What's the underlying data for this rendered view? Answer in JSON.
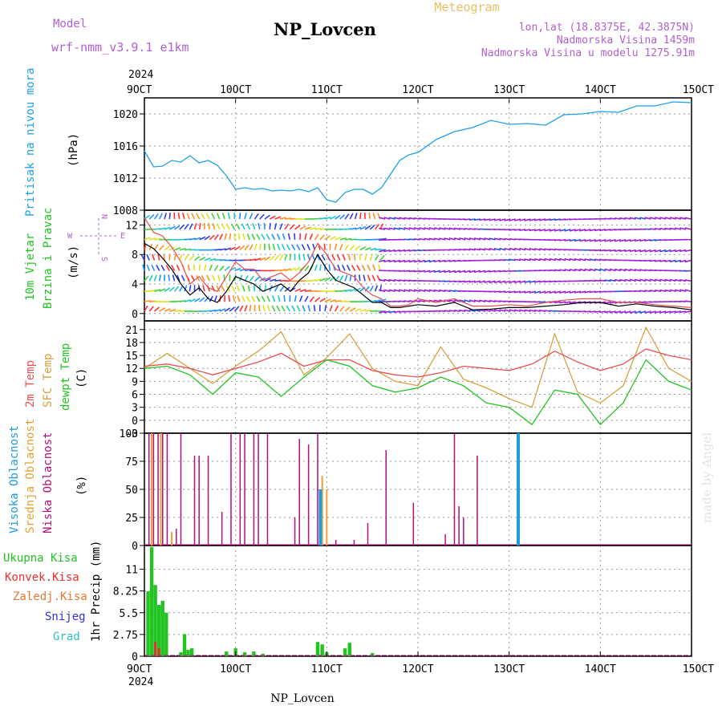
{
  "header": {
    "model_label": "Model",
    "model_name": "wrf-nmm_v3.9.1  e1km",
    "station": "NP_Lovcen",
    "product": "Meteogram",
    "lonlat": "lon,lat (18.8375E, 42.3875N)",
    "elev": "Nadmorska Visina 1459m",
    "elev_model": "Nadmorska Visina u modelu 1275.91m",
    "footer_station": "NP_Lovcen",
    "credit": "made by Angel"
  },
  "colors": {
    "pressure": "#1fa0e8",
    "wind_speed": "#000000",
    "gust": "#e85050",
    "temp2m": "#e85050",
    "sfc": "#d8a040",
    "dew": "#22c422",
    "high_cloud": "#1f9ce0",
    "mid_cloud": "#e8a030",
    "low_cloud": "#b0107a",
    "precip": "#22c422",
    "konv": "#e83030"
  },
  "chart_data": [
    {
      "type": "line",
      "panel": "pressure",
      "ylabel": "(hPa)",
      "side_label": "Pritisak na nivou mora",
      "ylim": [
        1008,
        1022
      ],
      "yticks": [
        1008,
        1012,
        1016,
        1020
      ],
      "x_ticks": [
        "9OCT",
        "10OCT",
        "11OCT",
        "12OCT",
        "13OCT",
        "14OCT",
        "15OCT"
      ],
      "x_year": "2024",
      "x": [
        0,
        0.1,
        0.2,
        0.3,
        0.4,
        0.5,
        0.6,
        0.7,
        0.8,
        0.9,
        1.0,
        1.1,
        1.2,
        1.3,
        1.4,
        1.5,
        1.6,
        1.7,
        1.8,
        1.9,
        2.0,
        2.1,
        2.2,
        2.3,
        2.4,
        2.5,
        2.6,
        2.7,
        2.8,
        2.9,
        3.0,
        3.2,
        3.4,
        3.6,
        3.8,
        4.0,
        4.2,
        4.4,
        4.6,
        4.8,
        5.0,
        5.2,
        5.4,
        5.6,
        5.8,
        6.0
      ],
      "series": [
        {
          "values": [
            1015.4,
            1013.4,
            1013.5,
            1014.2,
            1014.0,
            1014.8,
            1013.9,
            1014.2,
            1013.6,
            1012.3,
            1010.6,
            1010.8,
            1010.6,
            1010.7,
            1010.4,
            1010.5,
            1010.4,
            1010.6,
            1010.3,
            1010.8,
            1009.3,
            1009.0,
            1010.2,
            1010.6,
            1010.6,
            1010.0,
            1010.8,
            1012.5,
            1014.2,
            1014.9,
            1015.2,
            1016.8,
            1017.8,
            1018.3,
            1019.2,
            1018.7,
            1018.8,
            1018.6,
            1019.9,
            1020.0,
            1020.3,
            1020.2,
            1021.0,
            1021.0,
            1021.5,
            1021.4
          ]
        }
      ]
    },
    {
      "type": "line",
      "panel": "wind",
      "ylabel": "(m/s)",
      "side_label": "10m Vjetar",
      "side_label2": "Brzina i Pravac",
      "compass": {
        "n": "N",
        "s": "S",
        "w": "W",
        "e": "E"
      },
      "ylim": [
        -1,
        14
      ],
      "yticks": [
        0,
        4,
        8,
        12
      ],
      "x": [
        0,
        0.1,
        0.2,
        0.3,
        0.4,
        0.5,
        0.6,
        0.7,
        0.8,
        0.9,
        1.0,
        1.1,
        1.2,
        1.3,
        1.4,
        1.5,
        1.6,
        1.7,
        1.8,
        1.9,
        2.0,
        2.1,
        2.2,
        2.3,
        2.4,
        2.5,
        2.6,
        2.7,
        2.8,
        2.9,
        3.0,
        3.2,
        3.4,
        3.6,
        3.8,
        4.0,
        4.2,
        4.4,
        4.6,
        4.8,
        5.0,
        5.2,
        5.4,
        5.6,
        5.8,
        6.0
      ],
      "series": [
        {
          "name": "speed",
          "values": [
            9.5,
            8.8,
            7.5,
            6.0,
            4.0,
            2.5,
            3.5,
            2.0,
            1.5,
            3.0,
            5.0,
            4.5,
            4.0,
            3.0,
            3.5,
            4.0,
            3.0,
            4.5,
            5.5,
            8.0,
            6.0,
            4.5,
            4.0,
            3.5,
            2.5,
            1.5,
            1.5,
            0.8,
            0.8,
            1.0,
            1.2,
            1.0,
            1.5,
            0.5,
            0.6,
            0.8,
            0.8,
            1.0,
            1.2,
            1.5,
            1.5,
            1.0,
            1.3,
            1.0,
            0.8,
            0.5
          ]
        },
        {
          "name": "gust",
          "values": [
            13.0,
            11.0,
            10.5,
            9.0,
            7.0,
            4.0,
            5.0,
            3.5,
            3.0,
            5.0,
            7.0,
            6.0,
            6.0,
            4.5,
            5.0,
            5.5,
            4.5,
            5.5,
            7.0,
            9.5,
            8.0,
            6.0,
            5.5,
            5.0,
            3.5,
            2.5,
            2.0,
            1.0,
            1.0,
            1.2,
            2.0,
            1.5,
            2.0,
            1.0,
            1.0,
            1.2,
            1.0,
            1.5,
            1.8,
            2.0,
            2.0,
            1.5,
            1.5,
            1.2,
            1.0,
            0.8
          ]
        }
      ]
    },
    {
      "type": "line",
      "panel": "temperature",
      "ylabel": "(C)",
      "side_label_t2": "2m Temp",
      "side_label_sfc": "SFC Temp",
      "side_label_dew": "dewpt Temp",
      "ylim": [
        -3,
        23
      ],
      "yticks": [
        -3,
        0,
        3,
        6,
        9,
        12,
        15,
        18,
        21
      ],
      "x": [
        0,
        0.25,
        0.5,
        0.75,
        1.0,
        1.25,
        1.5,
        1.75,
        2.0,
        2.25,
        2.5,
        2.75,
        3.0,
        3.25,
        3.5,
        3.75,
        4.0,
        4.25,
        4.5,
        4.75,
        5.0,
        5.25,
        5.5,
        5.75,
        6.0
      ],
      "series": [
        {
          "name": "t2",
          "values": [
            12.5,
            13.0,
            12.0,
            10.5,
            12.0,
            13.5,
            15.5,
            12.5,
            14.0,
            14.0,
            11.5,
            10.5,
            10.0,
            11.0,
            12.5,
            12.0,
            11.5,
            13.0,
            16.0,
            13.5,
            11.5,
            13.0,
            16.5,
            15.0,
            14.0
          ]
        },
        {
          "name": "sfc",
          "values": [
            12.0,
            15.5,
            12.0,
            8.5,
            12.5,
            16.0,
            20.5,
            10.5,
            14.5,
            20.0,
            12.0,
            9.0,
            8.0,
            17.0,
            9.5,
            7.5,
            5.0,
            3.0,
            20.0,
            6.5,
            4.0,
            8.0,
            21.5,
            12.0,
            9.0
          ]
        },
        {
          "name": "dew",
          "values": [
            12.0,
            12.5,
            10.5,
            6.0,
            11.0,
            10.0,
            5.5,
            10.0,
            14.0,
            12.5,
            8.0,
            6.5,
            7.5,
            10.0,
            8.0,
            4.0,
            3.0,
            -1.0,
            7.0,
            6.0,
            -1.0,
            4.0,
            14.0,
            9.0,
            7.0
          ]
        }
      ]
    },
    {
      "type": "bar",
      "panel": "clouds",
      "ylabel": "(%)",
      "side_label_high": "Visoka Oblacnost",
      "side_label_mid": "Srednja Oblacnost",
      "side_label_low": "Niska Oblacnost",
      "ylim": [
        0,
        100
      ],
      "yticks": [
        0,
        25,
        50,
        75,
        100
      ],
      "low": [
        [
          0.05,
          100
        ],
        [
          0.1,
          100
        ],
        [
          0.15,
          100
        ],
        [
          0.2,
          100
        ],
        [
          0.25,
          100
        ],
        [
          0.35,
          15
        ],
        [
          0.4,
          100
        ],
        [
          0.55,
          80
        ],
        [
          0.6,
          80
        ],
        [
          0.7,
          80
        ],
        [
          0.85,
          30
        ],
        [
          0.95,
          100
        ],
        [
          1.05,
          100
        ],
        [
          1.1,
          100
        ],
        [
          1.2,
          100
        ],
        [
          1.25,
          100
        ],
        [
          1.35,
          100
        ],
        [
          1.65,
          25
        ],
        [
          1.7,
          95
        ],
        [
          1.8,
          90
        ],
        [
          1.9,
          100
        ],
        [
          2.1,
          5
        ],
        [
          2.3,
          5
        ],
        [
          2.45,
          20
        ],
        [
          2.65,
          85
        ],
        [
          2.95,
          38
        ],
        [
          3.3,
          10
        ],
        [
          3.4,
          100
        ],
        [
          3.45,
          35
        ],
        [
          3.5,
          25
        ],
        [
          3.65,
          80
        ]
      ],
      "mid": [
        [
          0.08,
          100
        ],
        [
          0.18,
          100
        ],
        [
          0.3,
          12
        ],
        [
          1.95,
          62
        ],
        [
          2.0,
          50
        ]
      ],
      "high": [
        [
          1.93,
          50
        ],
        [
          4.1,
          100
        ]
      ]
    },
    {
      "type": "bar",
      "panel": "precip",
      "ylabel": "1hr Precip (mm)",
      "side_total": "Ukupna Kisa",
      "side_konv": "Konvek.Kisa",
      "side_zal": "Zaledj.Kisa",
      "side_snow": "Snijeg",
      "side_grad": "Grad",
      "ylim": [
        0,
        14
      ],
      "yticks": [
        0,
        2.75,
        5.5,
        8.25,
        11
      ],
      "ytick_labels": [
        "0",
        "2.75",
        "5.5",
        "8.25",
        "11"
      ],
      "x": [
        0.04,
        0.08,
        0.12,
        0.16,
        0.2,
        0.24,
        0.4,
        0.44,
        0.48,
        0.52,
        0.9,
        1.0,
        1.1,
        1.2,
        1.3,
        1.9,
        1.95,
        2.0,
        2.2,
        2.25,
        2.5
      ],
      "values": [
        8.2,
        13.8,
        9.0,
        6.5,
        7.0,
        5.5,
        0.5,
        2.8,
        0.8,
        1.0,
        0.6,
        1.0,
        0.5,
        0.6,
        0.3,
        1.8,
        1.5,
        0.5,
        1.0,
        1.7,
        0.4
      ],
      "konv": [
        [
          0.12,
          1.8
        ],
        [
          0.16,
          1.0
        ]
      ]
    }
  ]
}
